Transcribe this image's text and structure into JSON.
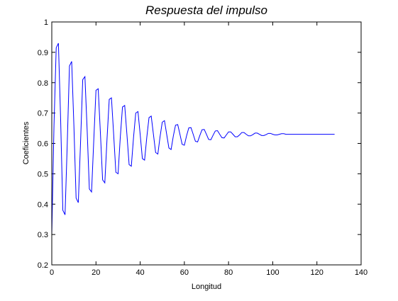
{
  "chart_data": {
    "type": "line",
    "title": "Respuesta del impulso",
    "xlabel": "Longitud",
    "ylabel": "Coeficientes",
    "xlim": [
      0,
      140
    ],
    "ylim": [
      0.2,
      1
    ],
    "xticks": [
      0,
      20,
      40,
      60,
      80,
      100,
      120,
      140
    ],
    "yticks": [
      0.2,
      0.3,
      0.4,
      0.5,
      0.6,
      0.7,
      0.8,
      0.9,
      1
    ],
    "grid": false,
    "legend": "none",
    "line_color": "#0000ff",
    "series": [
      {
        "x": [
          0,
          1,
          2,
          3,
          4,
          5,
          6,
          7,
          8,
          9,
          10,
          11,
          12,
          13,
          14,
          15,
          16,
          17,
          18,
          19,
          20,
          21,
          22,
          23,
          24,
          25,
          26,
          27,
          28,
          29,
          30,
          31,
          32,
          33,
          34,
          35,
          36,
          37,
          38,
          39,
          40,
          41,
          42,
          43,
          44,
          45,
          46,
          47,
          48,
          49,
          50,
          51,
          52,
          53,
          54,
          55,
          56,
          57,
          58,
          59,
          60,
          61,
          62,
          63,
          64,
          65,
          66,
          67,
          68,
          69,
          70,
          71,
          72,
          73,
          74,
          75,
          76,
          77,
          78,
          79,
          80,
          81,
          82,
          83,
          84,
          85,
          86,
          87,
          88,
          89,
          90,
          91,
          92,
          93,
          94,
          95,
          96,
          97,
          98,
          99,
          100,
          101,
          102,
          103,
          104,
          105,
          106,
          107,
          108,
          109,
          110,
          111,
          112,
          113,
          114,
          115,
          116,
          117,
          118,
          119,
          120,
          121,
          122,
          123,
          124,
          125,
          126,
          127,
          128
        ],
        "y": [
          0.3,
          0.66,
          0.915,
          0.93,
          0.68,
          0.38,
          0.365,
          0.6,
          0.855,
          0.87,
          0.66,
          0.42,
          0.405,
          0.6,
          0.81,
          0.82,
          0.645,
          0.45,
          0.44,
          0.61,
          0.775,
          0.78,
          0.635,
          0.48,
          0.47,
          0.615,
          0.745,
          0.75,
          0.63,
          0.505,
          0.5,
          0.62,
          0.72,
          0.725,
          0.63,
          0.53,
          0.525,
          0.62,
          0.7,
          0.705,
          0.63,
          0.55,
          0.545,
          0.62,
          0.685,
          0.69,
          0.63,
          0.57,
          0.565,
          0.622,
          0.67,
          0.675,
          0.63,
          0.585,
          0.58,
          0.624,
          0.66,
          0.662,
          0.63,
          0.597,
          0.594,
          0.625,
          0.651,
          0.652,
          0.63,
          0.607,
          0.605,
          0.626,
          0.645,
          0.646,
          0.63,
          0.613,
          0.612,
          0.627,
          0.641,
          0.642,
          0.63,
          0.619,
          0.618,
          0.628,
          0.638,
          0.638,
          0.63,
          0.622,
          0.622,
          0.628,
          0.636,
          0.636,
          0.63,
          0.625,
          0.625,
          0.629,
          0.634,
          0.634,
          0.63,
          0.626,
          0.626,
          0.629,
          0.633,
          0.633,
          0.63,
          0.628,
          0.628,
          0.63,
          0.632,
          0.632,
          0.63,
          0.63,
          0.63,
          0.63,
          0.63,
          0.63,
          0.63,
          0.63,
          0.63,
          0.63,
          0.63,
          0.63,
          0.63,
          0.63,
          0.63,
          0.63,
          0.63,
          0.63,
          0.63,
          0.63,
          0.63,
          0.63,
          0.63
        ]
      }
    ]
  }
}
